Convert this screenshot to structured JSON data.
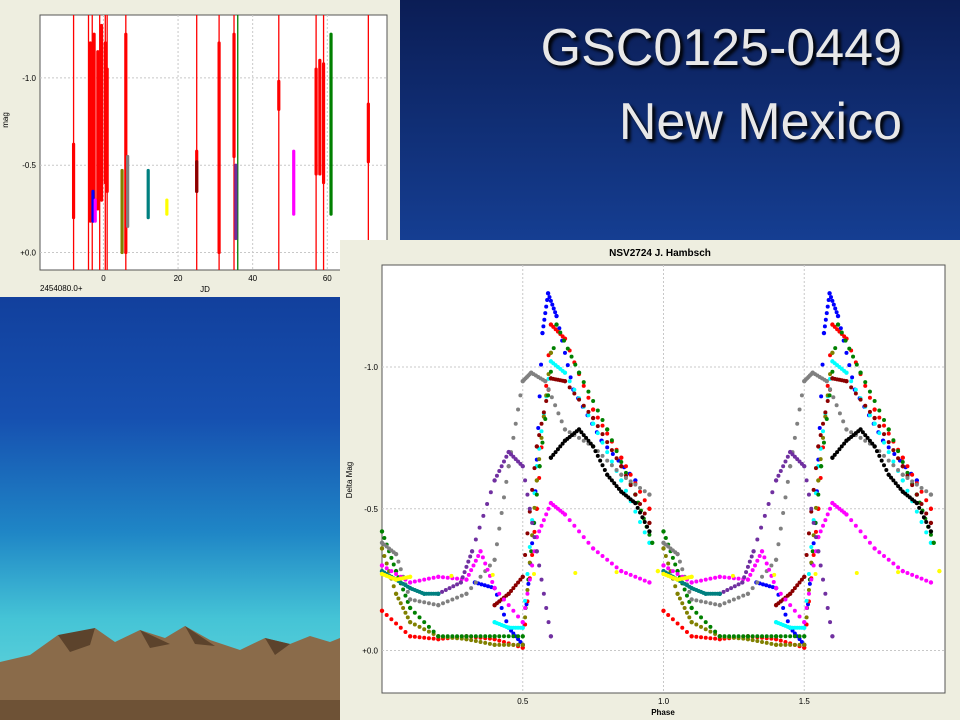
{
  "slide": {
    "title_line1": "GSC0125-0449",
    "title_line2": "New Mexico",
    "colors": {
      "title_text": "#e8e8e8",
      "chart_background": "#ffffff",
      "chart_panel": "#eeeee0",
      "mountain": "#8a6b4a"
    }
  },
  "chart_data": [
    {
      "type": "scatter",
      "title": "",
      "xlabel": "JD",
      "ylabel": "mag",
      "x_offset_label": "2454080.0+",
      "xlim": [
        -17,
        76
      ],
      "ylim": [
        -1.36,
        0.1
      ],
      "y_inverted": true,
      "x_ticks": [
        0,
        20,
        40,
        60
      ],
      "x_tick_labels": [
        "0",
        "20",
        "40",
        "60"
      ],
      "y_ticks": [
        -1.0,
        -0.5,
        0.0
      ],
      "y_tick_labels": [
        "-1.0",
        "-0.5",
        "+0.0"
      ],
      "grid": true,
      "legend": "none",
      "red_vertical_lines": [
        -8,
        -4,
        -3,
        -1,
        0.5,
        1,
        6,
        25,
        31,
        35,
        47,
        57,
        59,
        71
      ],
      "green_vertical_lines": [
        36
      ],
      "series": [
        {
          "color": "#ff0000",
          "x": [
            -8,
            -3.5,
            -2.5,
            -1.5,
            -0.5,
            0.5,
            1,
            6,
            25,
            31,
            35,
            47,
            57,
            58,
            59,
            71
          ],
          "y_min": [
            -0.62,
            -1.2,
            -1.25,
            -1.15,
            -1.3,
            -1.2,
            -1.05,
            -1.25,
            -0.58,
            -1.2,
            -1.25,
            -0.98,
            -1.05,
            -1.1,
            -1.08,
            -0.85
          ],
          "y_max": [
            -0.2,
            -0.18,
            -0.3,
            -0.25,
            -0.3,
            -0.4,
            -0.35,
            -0.0,
            -0.35,
            0.0,
            -0.55,
            -0.82,
            -0.45,
            -0.45,
            -0.4,
            -0.52
          ]
        },
        {
          "color": "#8b0000",
          "x": [
            25
          ],
          "y_min": [
            -0.52
          ],
          "y_max": [
            -0.35
          ]
        },
        {
          "color": "#0000ff",
          "x": [
            -2.8
          ],
          "y_min": [
            -0.35
          ],
          "y_max": [
            -0.18
          ]
        },
        {
          "color": "#ff00ff",
          "x": [
            -2.2,
            51
          ],
          "y_min": [
            -0.3,
            -0.58
          ],
          "y_max": [
            -0.18,
            -0.22
          ]
        },
        {
          "color": "#808000",
          "x": [
            5
          ],
          "y_min": [
            -0.47
          ],
          "y_max": [
            0.0
          ]
        },
        {
          "color": "#808080",
          "x": [
            6.5
          ],
          "y_min": [
            -0.55
          ],
          "y_max": [
            -0.15
          ]
        },
        {
          "color": "#008080",
          "x": [
            12
          ],
          "y_min": [
            -0.47
          ],
          "y_max": [
            -0.2
          ]
        },
        {
          "color": "#ffff00",
          "x": [
            17
          ],
          "y_min": [
            -0.3
          ],
          "y_max": [
            -0.22
          ]
        },
        {
          "color": "#7030a0",
          "x": [
            35.5
          ],
          "y_min": [
            -0.5
          ],
          "y_max": [
            -0.08
          ]
        },
        {
          "color": "#008000",
          "x": [
            61
          ],
          "y_min": [
            -1.25
          ],
          "y_max": [
            -0.22
          ]
        }
      ]
    },
    {
      "type": "scatter",
      "title": "NSV2724 J. Hambsch",
      "xlabel": "Phase",
      "ylabel": "Delta Mag",
      "xlim": [
        0.0,
        2.0
      ],
      "ylim": [
        -1.36,
        0.15
      ],
      "y_inverted": true,
      "x_ticks": [
        0.5,
        1.0,
        1.5
      ],
      "x_tick_labels": [
        "0.5",
        "1.0",
        "1.5"
      ],
      "y_ticks": [
        -1.0,
        -0.5,
        0.0
      ],
      "y_tick_labels": [
        "-1.0",
        "-0.5",
        "+0.0"
      ],
      "grid": true,
      "legend": "none",
      "period_phase": 1.0,
      "series": [
        {
          "color": "#0000ff",
          "phase": [
            0.33,
            0.4,
            0.45,
            0.5,
            0.54,
            0.57,
            0.59,
            0.62,
            0.68,
            0.78,
            0.9
          ],
          "mag": [
            -0.24,
            -0.22,
            -0.08,
            -0.02,
            -0.45,
            -1.12,
            -1.26,
            -1.18,
            -0.92,
            -0.74,
            -0.6
          ]
        },
        {
          "color": "#ff0000",
          "phase": [
            0.0,
            0.1,
            0.2,
            0.3,
            0.4,
            0.5,
            0.55,
            0.6,
            0.65,
            0.75,
            0.85,
            0.95
          ],
          "mag": [
            -0.14,
            -0.05,
            -0.04,
            -0.05,
            -0.04,
            -0.01,
            -0.5,
            -1.15,
            -1.1,
            -0.85,
            -0.68,
            -0.5
          ]
        },
        {
          "color": "#00ffff",
          "phase": [
            0.4,
            0.45,
            0.5,
            0.55,
            0.6,
            0.65,
            0.75,
            0.85,
            0.95
          ],
          "mag": [
            -0.1,
            -0.08,
            -0.08,
            -0.65,
            -1.02,
            -0.98,
            -0.8,
            -0.6,
            -0.38
          ]
        },
        {
          "color": "#808000",
          "phase": [
            0.0,
            0.05,
            0.1,
            0.2,
            0.3,
            0.4,
            0.5,
            0.55,
            0.6
          ],
          "mag": [
            -0.36,
            -0.2,
            -0.1,
            -0.05,
            -0.04,
            -0.02,
            -0.02,
            -0.6,
            -1.05
          ]
        },
        {
          "color": "#008000",
          "phase": [
            0.0,
            0.05,
            0.1,
            0.2,
            0.3,
            0.4,
            0.5,
            0.56,
            0.62,
            0.7,
            0.8,
            0.9,
            0.96
          ],
          "mag": [
            -0.42,
            -0.28,
            -0.15,
            -0.05,
            -0.05,
            -0.05,
            -0.05,
            -0.65,
            -1.15,
            -0.98,
            -0.78,
            -0.55,
            -0.38
          ]
        },
        {
          "color": "#8b0000",
          "phase": [
            0.4,
            0.45,
            0.5,
            0.55,
            0.6,
            0.65,
            0.75,
            0.85,
            0.95
          ],
          "mag": [
            -0.16,
            -0.2,
            -0.26,
            -0.72,
            -0.96,
            -0.95,
            -0.82,
            -0.65,
            -0.45
          ]
        },
        {
          "color": "#808080",
          "phase": [
            0.0,
            0.05,
            0.1,
            0.2,
            0.3,
            0.4,
            0.45,
            0.5,
            0.53,
            0.58,
            0.65,
            0.75,
            0.85,
            0.95
          ],
          "mag": [
            -0.38,
            -0.34,
            -0.18,
            -0.16,
            -0.2,
            -0.32,
            -0.65,
            -0.95,
            -0.98,
            -0.95,
            -0.78,
            -0.72,
            -0.62,
            -0.55
          ]
        },
        {
          "color": "#000000",
          "phase": [
            0.6,
            0.65,
            0.7,
            0.75,
            0.8,
            0.85,
            0.9,
            0.95
          ],
          "mag": [
            -0.68,
            -0.74,
            -0.78,
            -0.72,
            -0.62,
            -0.56,
            -0.52,
            -0.42
          ]
        },
        {
          "color": "#ff00ff",
          "phase": [
            0.0,
            0.1,
            0.2,
            0.3,
            0.35,
            0.4,
            0.5,
            0.55,
            0.6,
            0.65,
            0.75,
            0.85,
            0.95
          ],
          "mag": [
            -0.3,
            -0.24,
            -0.26,
            -0.25,
            -0.35,
            -0.22,
            -0.1,
            -0.4,
            -0.52,
            -0.48,
            -0.36,
            -0.28,
            -0.24
          ]
        },
        {
          "color": "#7030a0",
          "phase": [
            0.2,
            0.28,
            0.32,
            0.4,
            0.45,
            0.5,
            0.55,
            0.6
          ],
          "mag": [
            -0.2,
            -0.24,
            -0.35,
            -0.6,
            -0.7,
            -0.65,
            -0.35,
            -0.05
          ]
        },
        {
          "color": "#008080",
          "phase": [
            0.0,
            0.05,
            0.1,
            0.15,
            0.2
          ],
          "mag": [
            -0.28,
            -0.25,
            -0.22,
            -0.2,
            -0.2
          ]
        },
        {
          "color": "#ffff00",
          "phase": [
            0.0,
            0.05,
            0.1,
            0.98
          ],
          "mag": [
            -0.27,
            -0.25,
            -0.26,
            -0.28
          ]
        }
      ]
    }
  ]
}
